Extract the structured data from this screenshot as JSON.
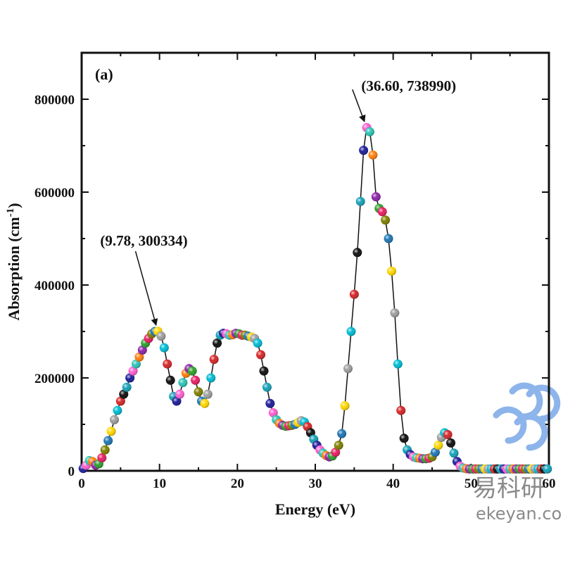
{
  "chart_data": {
    "type": "scatter",
    "panel_label": "(a)",
    "xlabel": "Energy (eV)",
    "ylabel_main": "Absorption (cm",
    "ylabel_sup": "-1",
    "ylabel_close": ")",
    "xlim": [
      0,
      60
    ],
    "ylim": [
      0,
      800000
    ],
    "x_ticks": [
      0,
      10,
      20,
      30,
      40,
      50,
      60
    ],
    "y_ticks": [
      0,
      200000,
      400000,
      600000,
      800000
    ],
    "x_tick_labels": [
      "0",
      "10",
      "20",
      "30",
      "40",
      "50",
      "60"
    ],
    "y_tick_labels": [
      "0",
      "200000",
      "400000",
      "600000",
      "800000"
    ],
    "grid": false,
    "marker_colors": [
      "#1e1e9a",
      "#ff5fd0",
      "#2ec4b6",
      "#ff7f0e",
      "#8e24aa",
      "#2ca02c",
      "#e91e63",
      "#808000",
      "#1f77b4",
      "#ffd700",
      "#9e9e9e",
      "#00bcd4",
      "#d62728",
      "#111111",
      "#17a2b8"
    ],
    "line_color": "#111111",
    "series": [
      {
        "x": [
          0.2,
          0.6,
          1.0,
          1.4,
          1.8,
          2.2,
          2.6,
          3.0,
          3.4,
          3.8,
          4.2,
          4.6,
          5.0,
          5.4,
          5.8,
          6.2,
          6.6,
          7.0,
          7.4,
          7.8,
          8.2,
          8.6,
          9.0,
          9.4,
          9.78,
          10.2,
          10.6,
          11.0,
          11.4,
          11.8,
          12.2,
          12.6,
          13.0,
          13.4,
          13.8,
          14.2,
          14.6,
          15.0,
          15.4,
          15.8,
          16.2,
          16.6,
          17.0,
          17.4,
          17.8,
          18.2,
          18.6,
          19.0,
          19.4,
          19.8,
          20.2,
          20.6,
          21.0,
          21.4,
          21.8,
          22.2,
          22.6,
          23.0,
          23.4,
          23.8,
          24.2,
          24.6,
          25.0,
          25.4,
          25.8,
          26.2,
          26.6,
          27.0,
          27.4,
          27.8,
          28.2,
          28.6,
          29.0,
          29.4,
          29.8,
          30.2,
          30.6,
          31.0,
          31.4,
          31.8,
          32.2,
          32.6,
          33.0,
          33.4,
          33.8,
          34.2,
          34.6,
          35.0,
          35.4,
          35.8,
          36.2,
          36.6,
          37.0,
          37.4,
          37.8,
          38.2,
          38.6,
          39.0,
          39.4,
          39.8,
          40.2,
          40.6,
          41.0,
          41.4,
          41.8,
          42.2,
          42.6,
          43.0,
          43.4,
          43.8,
          44.2,
          44.6,
          45.0,
          45.4,
          45.8,
          46.2,
          46.6,
          47.0,
          47.4,
          47.8,
          48.2,
          48.6,
          49.0,
          49.4,
          49.8,
          50.2,
          50.6,
          51.0,
          51.4,
          51.8,
          52.2,
          52.6,
          53.0,
          53.4,
          53.8,
          54.2,
          54.6,
          55.0,
          55.4,
          55.8,
          56.2,
          56.6,
          57.0,
          57.4,
          57.8,
          58.2,
          58.6,
          59.0,
          59.4,
          59.8
        ],
        "y": [
          5000,
          12000,
          22000,
          20000,
          12000,
          15000,
          28000,
          45000,
          65000,
          85000,
          110000,
          130000,
          150000,
          165000,
          180000,
          200000,
          215000,
          230000,
          245000,
          260000,
          275000,
          285000,
          295000,
          300000,
          300334,
          290000,
          265000,
          230000,
          195000,
          160000,
          150000,
          165000,
          190000,
          210000,
          220000,
          215000,
          195000,
          170000,
          150000,
          145000,
          165000,
          200000,
          240000,
          275000,
          292000,
          296000,
          295000,
          292000,
          293000,
          296000,
          295000,
          292000,
          292000,
          290000,
          288000,
          285000,
          275000,
          250000,
          215000,
          180000,
          145000,
          125000,
          110000,
          102000,
          98000,
          96000,
          97000,
          98000,
          100000,
          104000,
          108000,
          105000,
          95000,
          82000,
          68000,
          55000,
          45000,
          38000,
          33000,
          30000,
          32000,
          40000,
          55000,
          80000,
          140000,
          220000,
          300000,
          380000,
          470000,
          580000,
          690000,
          738990,
          730000,
          680000,
          590000,
          565000,
          558000,
          540000,
          500000,
          430000,
          340000,
          230000,
          130000,
          70000,
          45000,
          35000,
          30000,
          28000,
          27000,
          26000,
          26000,
          27000,
          30000,
          40000,
          55000,
          72000,
          82000,
          78000,
          60000,
          38000,
          20000,
          10000,
          6000,
          4500,
          4000,
          4000,
          4000,
          4000,
          4000,
          4000,
          4000,
          4000,
          4000,
          4000,
          4000,
          4000,
          4000,
          4000,
          4000,
          4000,
          4000,
          4000,
          4000,
          4000,
          4000,
          4000,
          4000,
          4000,
          4000,
          4000
        ]
      }
    ],
    "annotations": [
      {
        "text": "(9.78, 300334)",
        "x": 9.78,
        "y": 300334,
        "text_x": 8.0,
        "text_y": 485000
      },
      {
        "text": "(36.60, 738990)",
        "x": 36.6,
        "y": 738990,
        "text_x": 42.0,
        "text_y": 818000
      }
    ]
  },
  "watermark": {
    "text_cn": "易科研",
    "text_url": "ekeyan.com",
    "color": "#7aa7e8"
  }
}
